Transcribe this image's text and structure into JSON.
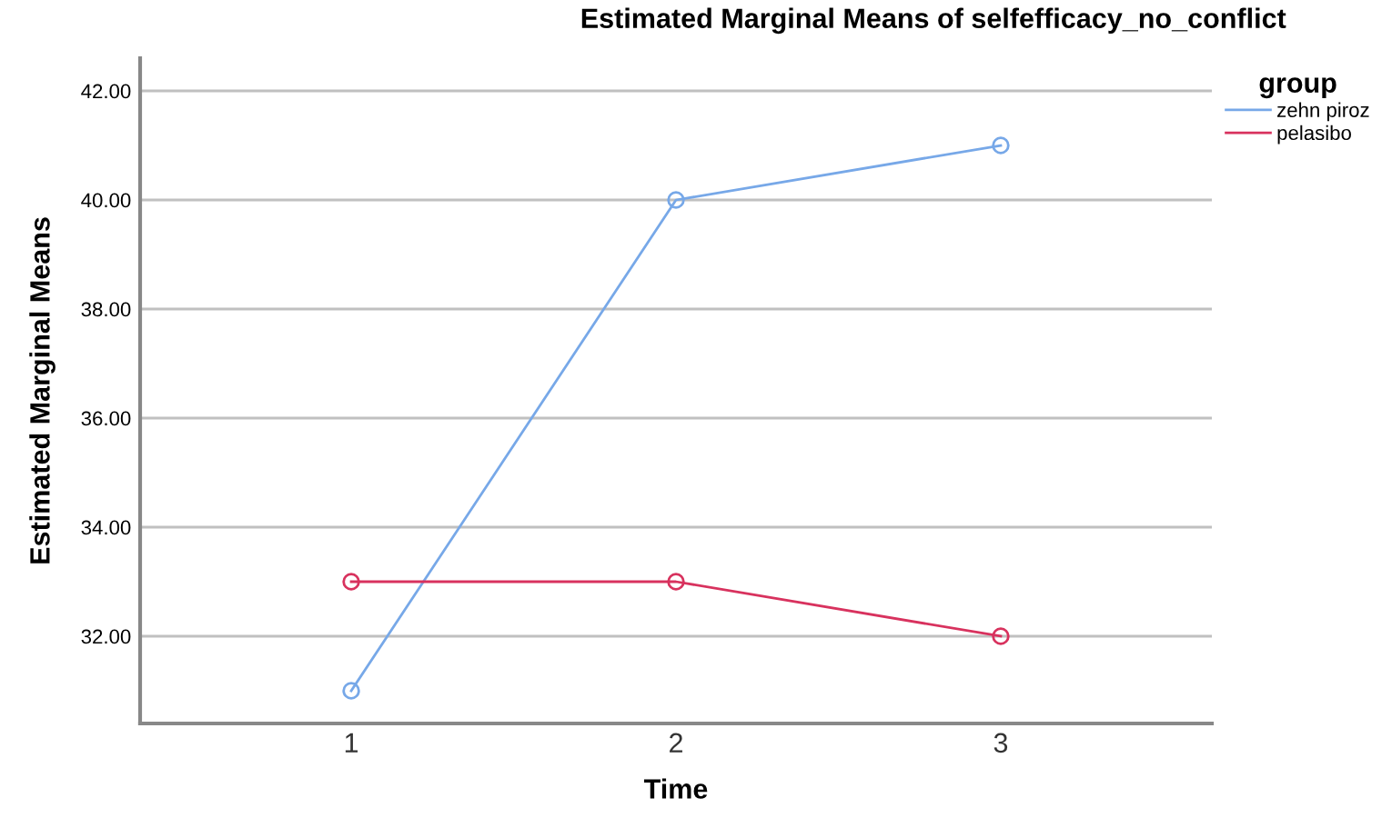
{
  "chart_data": {
    "type": "line",
    "title": "Estimated Marginal Means of selfefficacy_no_conflict",
    "xlabel": "Time",
    "ylabel": "Estimated Marginal Means",
    "legend_title": "group",
    "categories": [
      "1",
      "2",
      "3"
    ],
    "series": [
      {
        "name": "zehn piroz",
        "color": "#77a8e8",
        "values": [
          31,
          40,
          41
        ]
      },
      {
        "name": "pelasibo",
        "color": "#d8325e",
        "values": [
          33,
          33,
          32
        ]
      }
    ],
    "ylim": [
      30.4,
      42.6
    ],
    "yticks": [
      {
        "value": 32,
        "label": "32.00"
      },
      {
        "value": 34,
        "label": "34.00"
      },
      {
        "value": 36,
        "label": "36.00"
      },
      {
        "value": 38,
        "label": "38.00"
      },
      {
        "value": 40,
        "label": "40.00"
      },
      {
        "value": 42,
        "label": "42.00"
      }
    ],
    "grid": "y",
    "legend": "right",
    "marker": "circle",
    "line_style": "solid"
  }
}
